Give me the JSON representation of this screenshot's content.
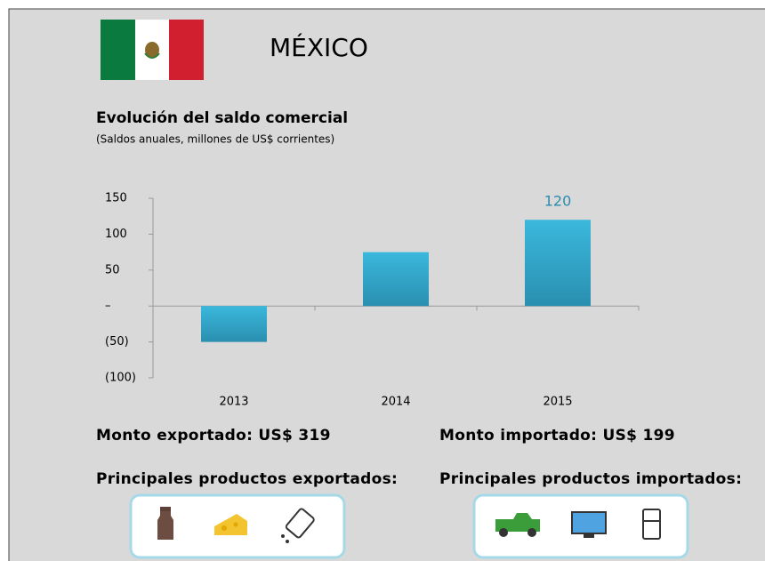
{
  "header": {
    "title": "MÉXICO"
  },
  "chart_data": {
    "type": "bar",
    "title": "Evolución del saldo comercial",
    "subtitle": "(Saldos anuales, millones de US$ corrientes)",
    "categories": [
      "2013",
      "2014",
      "2015"
    ],
    "values": [
      -50,
      75,
      120
    ],
    "value_labels": [
      null,
      null,
      "120"
    ],
    "color": "#33aed3",
    "ylim": [
      -100,
      150
    ],
    "yticks": [
      {
        "value": -100,
        "label": "(100)"
      },
      {
        "value": -50,
        "label": "(50)"
      },
      {
        "value": 0,
        "label": "–"
      },
      50,
      100,
      150
    ]
  },
  "summary": {
    "exported": "Monto exportado: US$ 319",
    "imported": "Monto importado: US$ 199",
    "exported_products": "Principales productos exportados:",
    "imported_products": "Principales productos importados:"
  }
}
